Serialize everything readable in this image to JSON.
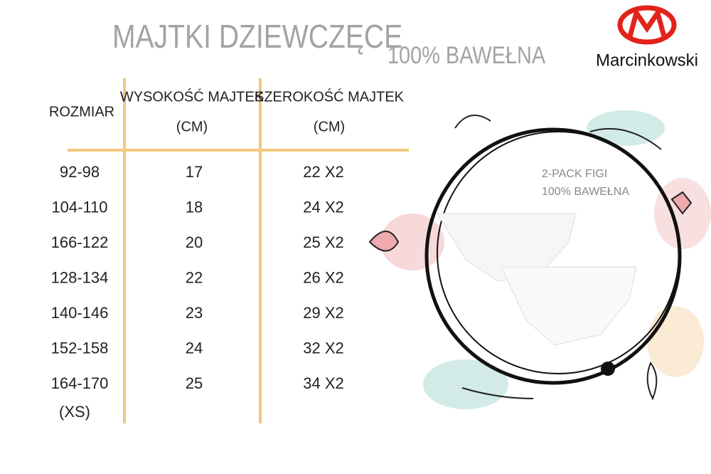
{
  "header": {
    "title": "MAJTKI DZIEWCZĘCE",
    "subtitle": "100% BAWEŁNA",
    "brand": "Marcinkowski"
  },
  "table": {
    "columns": [
      {
        "title": "ROZMIAR"
      },
      {
        "title": "WYSOKOŚĆ MAJTEK",
        "unit": "(CM)"
      },
      {
        "title": "SZEROKOŚĆ MAJTEK",
        "unit": "(CM)"
      }
    ],
    "rows": [
      [
        "92-98",
        "17",
        "22 X2"
      ],
      [
        "104-110",
        "18",
        "24 X2"
      ],
      [
        "166-122",
        "20",
        "25 X2"
      ],
      [
        "128-134",
        "22",
        "26 X2"
      ],
      [
        "140-146",
        "23",
        "29 X2"
      ],
      [
        "152-158",
        "24",
        "32 X2"
      ],
      [
        "164-170",
        "25",
        "34 X2"
      ]
    ],
    "note": "(XS)"
  },
  "pack": {
    "line1": "2-PACK FIGI",
    "line2": "100% BAWEŁNA"
  }
}
